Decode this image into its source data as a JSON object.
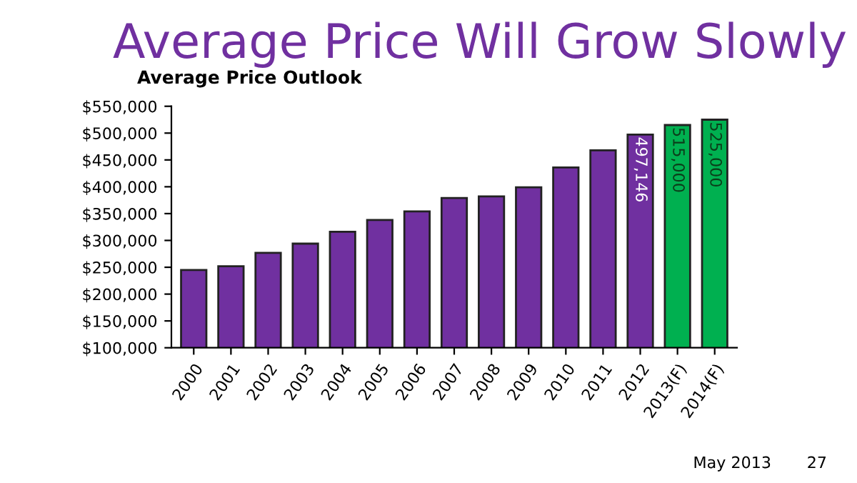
{
  "chart_data": {
    "type": "bar",
    "title": "Average Price Will Grow Slowly",
    "subtitle": "Average Price Outlook",
    "categories": [
      "2000",
      "2001",
      "2002",
      "2003",
      "2004",
      "2005",
      "2006",
      "2007",
      "2008",
      "2009",
      "2010",
      "2011",
      "2012",
      "2013(F)",
      "2014(F)"
    ],
    "values": [
      245000,
      252000,
      277000,
      294000,
      316000,
      338000,
      354000,
      379000,
      382000,
      399000,
      436000,
      468000,
      497146,
      515000,
      525000
    ],
    "colors": [
      "#7030a0",
      "#7030a0",
      "#7030a0",
      "#7030a0",
      "#7030a0",
      "#7030a0",
      "#7030a0",
      "#7030a0",
      "#7030a0",
      "#7030a0",
      "#7030a0",
      "#7030a0",
      "#7030a0",
      "#00b050",
      "#00b050"
    ],
    "value_labels": [
      null,
      null,
      null,
      null,
      null,
      null,
      null,
      null,
      null,
      null,
      null,
      null,
      "497,146",
      "515,000",
      "525,000"
    ],
    "ylim": [
      100000,
      550000
    ],
    "yticks": [
      {
        "value": 100000,
        "label": "$100,000"
      },
      {
        "value": 150000,
        "label": "$150,000"
      },
      {
        "value": 200000,
        "label": "$200,000"
      },
      {
        "value": 250000,
        "label": "$250,000"
      },
      {
        "value": 300000,
        "label": "$300,000"
      },
      {
        "value": 350000,
        "label": "$350,000"
      },
      {
        "value": 400000,
        "label": "$400,000"
      },
      {
        "value": 450000,
        "label": "$450,000"
      },
      {
        "value": 500000,
        "label": "$500,000"
      },
      {
        "value": 550000,
        "label": "$550,000"
      }
    ],
    "grid": false,
    "annotations": [
      "May 2013",
      "27"
    ]
  }
}
